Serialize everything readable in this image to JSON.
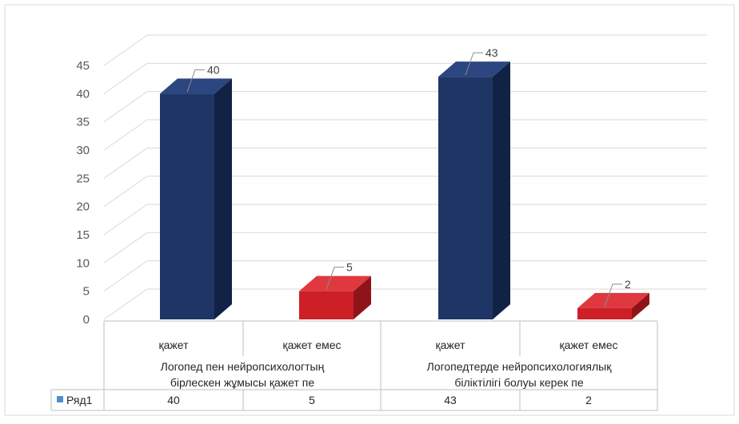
{
  "chart_data": {
    "type": "bar",
    "style": "3d-column",
    "title": "",
    "xlabel": "",
    "ylabel": "",
    "ylim": [
      0,
      45
    ],
    "yticks": [
      0,
      5,
      10,
      15,
      20,
      25,
      30,
      35,
      40,
      45
    ],
    "grid": true,
    "groups": [
      {
        "label_lines": [
          "Логопед пен нейропсихологтың",
          "бірлескен жұмысы қажет пе"
        ],
        "categories": [
          "қажет",
          "қажет емес"
        ]
      },
      {
        "label_lines": [
          "Логопедтерде нейропсихологиялық",
          "біліктілігі болуы керек пе"
        ],
        "categories": [
          "қажет",
          "қажет емес"
        ]
      }
    ],
    "series": [
      {
        "name": "Ряд1",
        "values": [
          40,
          5,
          43,
          2
        ]
      }
    ],
    "point_colors": [
      "#1f3566",
      "#cc1f26",
      "#1f3566",
      "#cc1f26"
    ],
    "data_labels": [
      "40",
      "5",
      "43",
      "2"
    ],
    "data_table": true,
    "legend": "data-table",
    "legend_key_color": "#4a90d0"
  }
}
